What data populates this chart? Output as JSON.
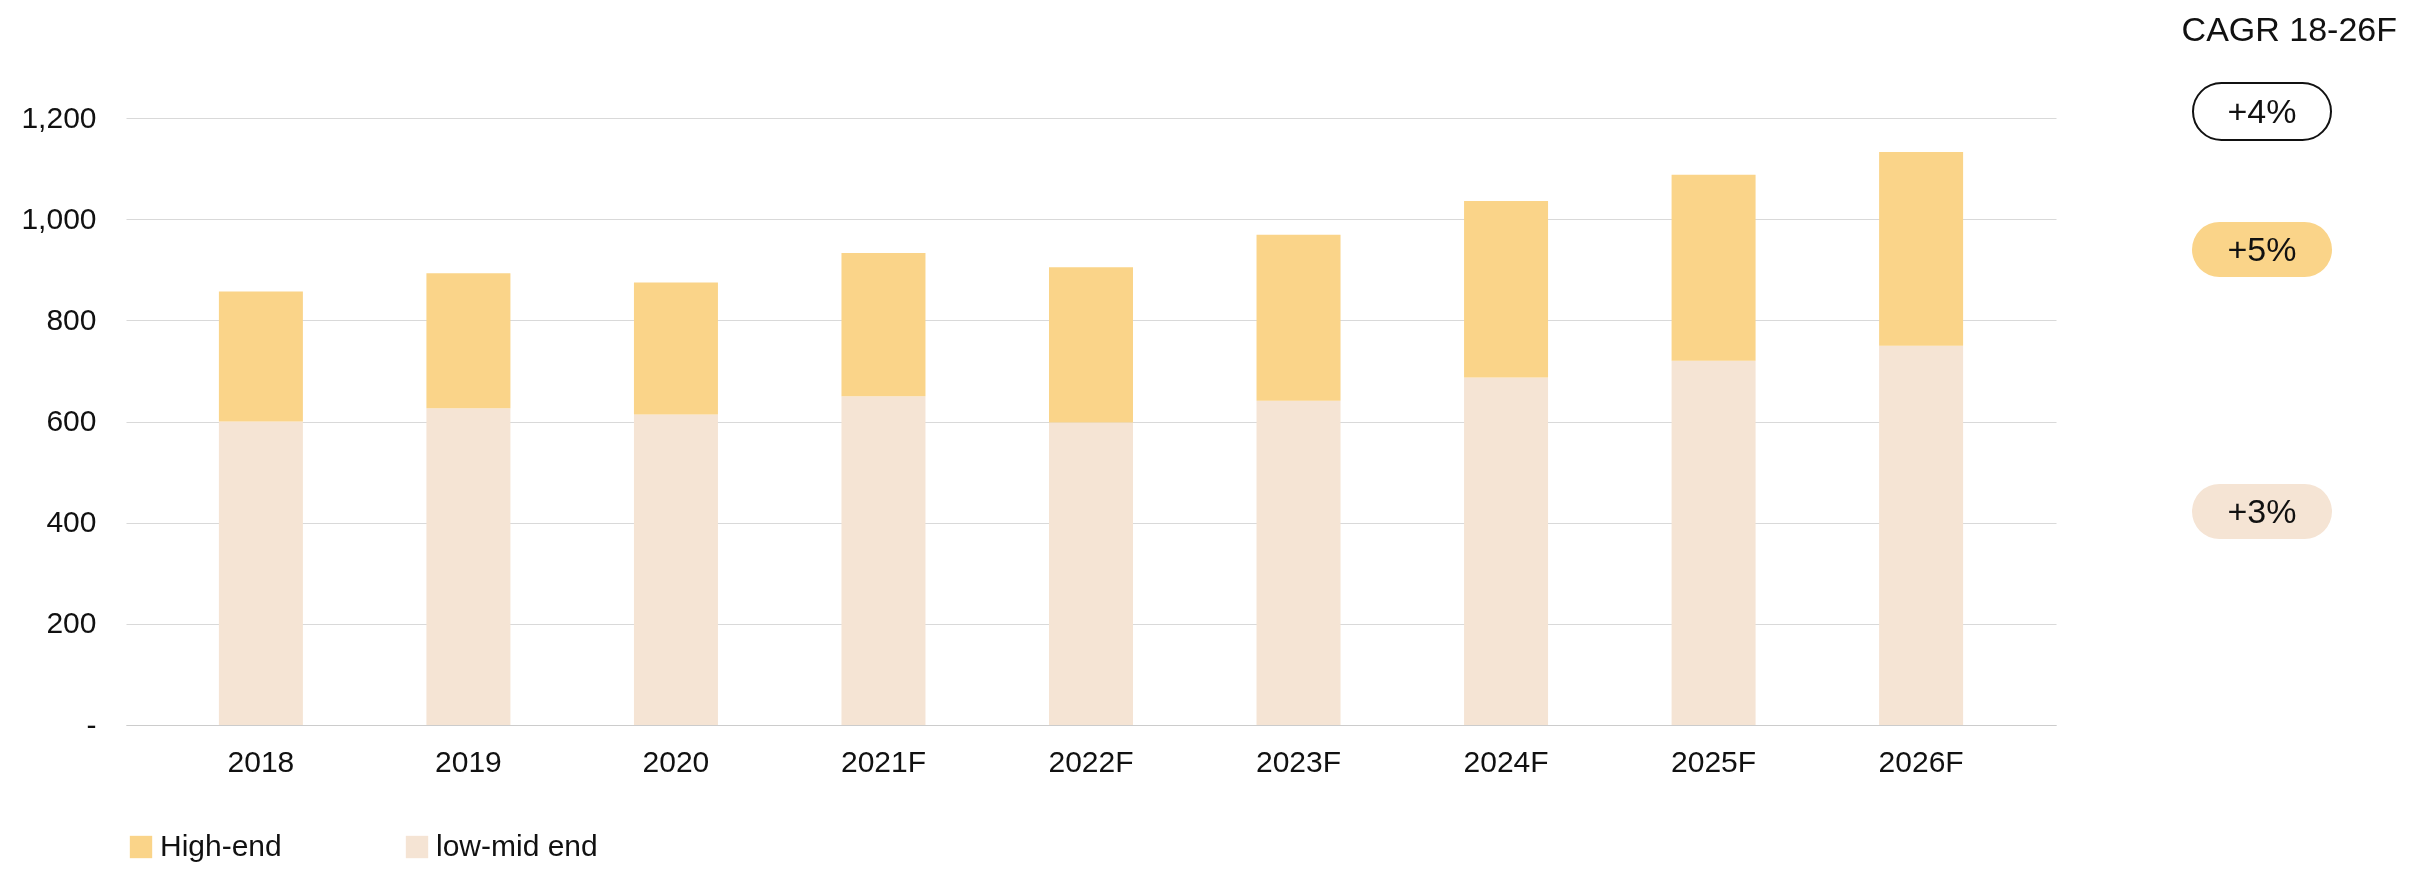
{
  "chart_data": {
    "type": "bar",
    "stacked": true,
    "categories": [
      "2018",
      "2019",
      "2020",
      "2021F",
      "2022F",
      "2023F",
      "2024F",
      "2025F",
      "2026F"
    ],
    "series": [
      {
        "name": "low-mid end",
        "color": "#f5e4d4",
        "values": [
          600,
          626,
          614,
          650,
          598,
          641,
          687,
          720,
          750
        ]
      },
      {
        "name": "High-end",
        "color": "#fad489",
        "values": [
          257,
          267,
          261,
          283,
          307,
          328,
          349,
          368,
          383
        ]
      }
    ],
    "ylim": [
      0,
      1200
    ],
    "yticks": [
      {
        "value": 0,
        "label": "-"
      },
      200,
      400,
      600,
      800,
      {
        "value": 1000,
        "label": "1,000"
      },
      {
        "value": 1200,
        "label": "1,200"
      }
    ],
    "grid": "y",
    "legend": "bottom",
    "annotations": [
      "CAGR 18-26F",
      "+4%",
      "+5%",
      "+3%"
    ]
  }
}
